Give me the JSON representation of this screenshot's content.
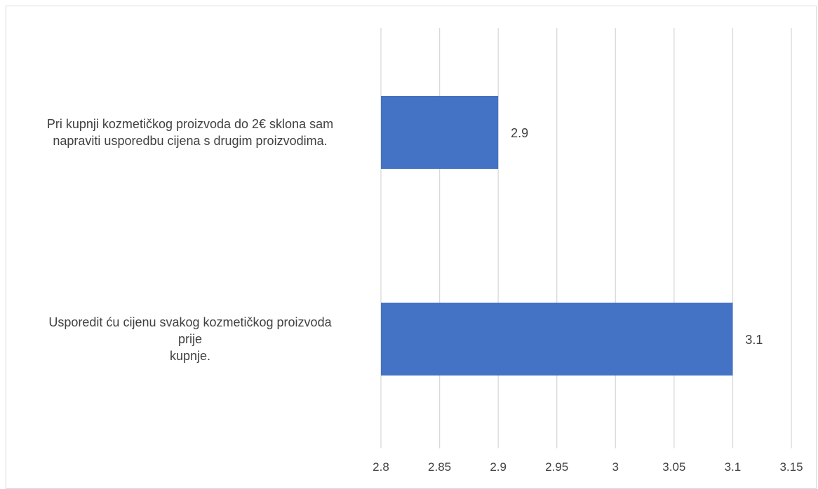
{
  "chart_data": {
    "type": "bar",
    "orientation": "horizontal",
    "categories": [
      [
        "Pri kupnji kozmetičkog proizvoda do 2€ sklona sam",
        "napraviti usporedbu cijena s drugim proizvodima."
      ],
      [
        "Usporedit ću cijenu svakog kozmetičkog proizvoda",
        "prije",
        "kupnje."
      ]
    ],
    "values": [
      2.9,
      3.1
    ],
    "value_labels": [
      "2.9",
      "3.1"
    ],
    "xlim": [
      2.8,
      3.15
    ],
    "ticks": [
      2.8,
      2.85,
      2.9,
      2.95,
      3,
      3.05,
      3.1,
      3.15
    ],
    "tick_labels": [
      "2.8",
      "2.85",
      "2.9",
      "2.95",
      "3",
      "3.05",
      "3.1",
      "3.15"
    ],
    "title": "",
    "xlabel": "",
    "ylabel": "",
    "grid": "vertical",
    "legend": "none",
    "bar_color": "#4472c4",
    "grid_color": "#d9d9d9",
    "text_color": "#404040"
  }
}
